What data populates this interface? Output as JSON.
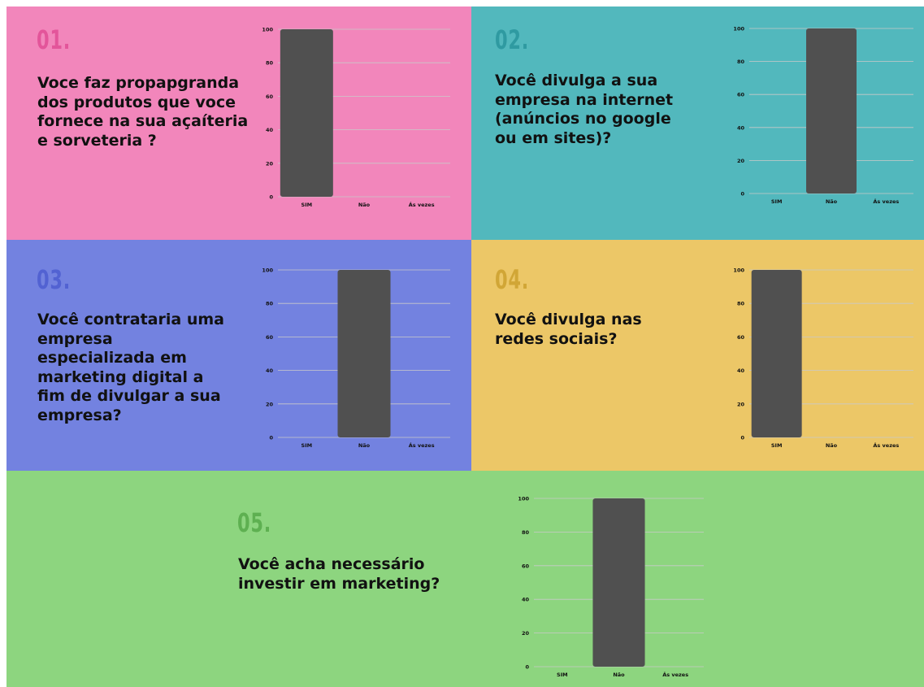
{
  "colors": {
    "bar": "#505050",
    "grid": "#c9c9c9",
    "axis_text": "#111111"
  },
  "panels": [
    {
      "number": "01.",
      "question_lines": [
        "Voce faz propapgranda",
        "dos produtos que voce",
        "fornece na sua açaíteria",
        "e sorveteria ?"
      ],
      "bg": "#f286bb",
      "num_color": "#e3559a"
    },
    {
      "number": "02.",
      "question_lines": [
        "Você divulga a sua",
        "empresa na internet",
        "(anúncios no google",
        "ou em sites)?"
      ],
      "bg": "#52b8bd",
      "num_color": "#2f9aa1"
    },
    {
      "number": "03.",
      "question_lines": [
        "Você contrataria uma",
        "empresa",
        "especializada em",
        "marketing digital a",
        "fim de divulgar a sua",
        "empresa?"
      ],
      "bg": "#7382e0",
      "num_color": "#5262d2"
    },
    {
      "number": "04.",
      "question_lines": [
        "Você divulga nas",
        "redes sociais?"
      ],
      "bg": "#ecc767",
      "num_color": "#d1a636"
    },
    {
      "number": "05.",
      "question_lines": [
        "Você acha necessário",
        "investir em marketing?"
      ],
      "bg": "#8dd57f",
      "num_color": "#5eb051"
    }
  ],
  "chart_data": [
    {
      "type": "bar",
      "categories": [
        "SIM",
        "Não",
        "Ás vezes"
      ],
      "values": [
        100,
        0,
        0
      ],
      "ylim": [
        0,
        100
      ],
      "yticks": [
        "0",
        "20",
        "40",
        "60",
        "80",
        "100"
      ],
      "grid": true
    },
    {
      "type": "bar",
      "categories": [
        "SIM",
        "Não",
        "Ás vezes"
      ],
      "values": [
        0,
        100,
        0
      ],
      "ylim": [
        0,
        100
      ],
      "yticks": [
        "0",
        "20",
        "40",
        "60",
        "80",
        "100"
      ],
      "grid": true
    },
    {
      "type": "bar",
      "categories": [
        "SIM",
        "Não",
        "Ás vezes"
      ],
      "values": [
        0,
        100,
        0
      ],
      "ylim": [
        0,
        100
      ],
      "yticks": [
        "0",
        "20",
        "40",
        "60",
        "80",
        "100"
      ],
      "grid": true
    },
    {
      "type": "bar",
      "categories": [
        "SIM",
        "Não",
        "Ás vezes"
      ],
      "values": [
        100,
        0,
        0
      ],
      "ylim": [
        0,
        100
      ],
      "yticks": [
        "0",
        "20",
        "40",
        "60",
        "80",
        "100"
      ],
      "grid": true
    },
    {
      "type": "bar",
      "categories": [
        "SIM",
        "Não",
        "Ás vezes"
      ],
      "values": [
        0,
        100,
        0
      ],
      "ylim": [
        0,
        100
      ],
      "yticks": [
        "0",
        "20",
        "40",
        "60",
        "80",
        "100"
      ],
      "grid": true
    }
  ]
}
